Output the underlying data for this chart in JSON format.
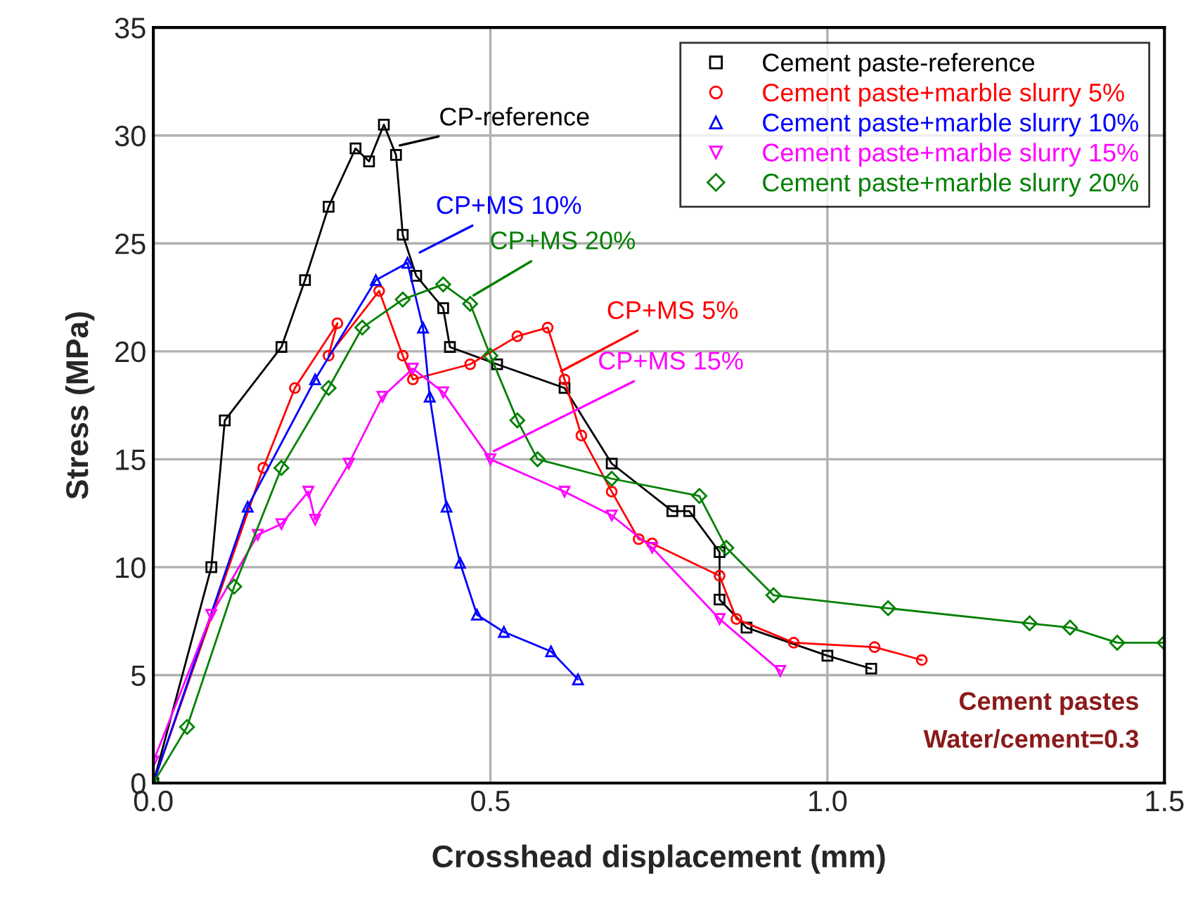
{
  "chart_data": {
    "type": "line",
    "xlabel": "Crosshead displacement (mm)",
    "ylabel": "Stress (MPa)",
    "xlim": [
      0,
      1.5
    ],
    "xticks": [
      {
        "value": 0,
        "label": "0.0"
      },
      0.5,
      {
        "value": 1,
        "label": "1.0"
      },
      1.5
    ],
    "ylim": [
      0,
      35
    ],
    "yticks": [
      0,
      5,
      10,
      15,
      20,
      25,
      30,
      35
    ],
    "grid": true,
    "legend": "top right",
    "series": [
      {
        "name": "Cement paste-reference",
        "color": "#000000",
        "marker": "square",
        "x": [
          0,
          0.086,
          0.106,
          0.19,
          0.225,
          0.26,
          0.3,
          0.32,
          0.342,
          0.36,
          0.37,
          0.39,
          0.43,
          0.44,
          0.51,
          0.61,
          0.68,
          0.77,
          0.795,
          0.84,
          0.84,
          0.88,
          1.0,
          1.065
        ],
        "values": [
          0,
          10.0,
          16.8,
          20.2,
          23.3,
          26.7,
          29.4,
          28.8,
          30.5,
          29.1,
          25.4,
          23.5,
          22.0,
          20.2,
          19.4,
          18.3,
          14.8,
          12.6,
          12.6,
          10.7,
          8.5,
          7.2,
          5.9,
          5.3
        ]
      },
      {
        "name": "Cement paste+marble slurry 5%",
        "color": "#ff0000",
        "marker": "circle",
        "x": [
          0,
          0.163,
          0.21,
          0.273,
          0.26,
          0.335,
          0.37,
          0.385,
          0.47,
          0.54,
          0.585,
          0.61,
          0.635,
          0.68,
          0.72,
          0.74,
          0.84,
          0.865,
          0.95,
          1.07,
          1.14
        ],
        "values": [
          0,
          14.6,
          18.3,
          21.3,
          19.8,
          22.8,
          19.8,
          18.7,
          19.4,
          20.7,
          21.1,
          18.7,
          16.1,
          13.5,
          11.3,
          11.1,
          9.6,
          7.6,
          6.5,
          6.3,
          5.7
        ]
      },
      {
        "name": "Cement paste+marble slurry 10%",
        "color": "#0000ff",
        "marker": "triangle",
        "x": [
          0,
          0.14,
          0.24,
          0.33,
          0.377,
          0.4,
          0.41,
          0.435,
          0.455,
          0.48,
          0.52,
          0.59,
          0.63
        ],
        "values": [
          0,
          12.8,
          18.7,
          23.3,
          24.1,
          21.1,
          17.9,
          12.8,
          10.2,
          7.8,
          7.0,
          6.1,
          4.8
        ]
      },
      {
        "name": "Cement paste+marble slurry 15%",
        "color": "#ff00ff",
        "marker": "triangle_down",
        "x": [
          0,
          0.086,
          0.155,
          0.19,
          0.23,
          0.24,
          0.29,
          0.34,
          0.385,
          0.43,
          0.5,
          0.61,
          0.68,
          0.74,
          0.84,
          0.93
        ],
        "values": [
          1.0,
          7.8,
          11.5,
          12.0,
          13.5,
          12.2,
          14.8,
          17.9,
          19.2,
          18.1,
          15.0,
          13.5,
          12.4,
          10.9,
          7.6,
          5.2
        ]
      },
      {
        "name": "Cement paste+marble slurry 20%",
        "color": "#008000",
        "marker": "diamond",
        "x": [
          0,
          0.05,
          0.12,
          0.19,
          0.26,
          0.31,
          0.37,
          0.43,
          0.47,
          0.5,
          0.54,
          0.57,
          0.68,
          0.81,
          0.85,
          0.92,
          1.09,
          1.3,
          1.36,
          1.43,
          1.5
        ],
        "values": [
          0,
          2.6,
          9.1,
          14.6,
          18.3,
          21.1,
          22.4,
          23.1,
          22.2,
          19.8,
          16.8,
          15.0,
          14.1,
          13.3,
          10.9,
          8.7,
          8.1,
          7.4,
          7.2,
          6.5,
          6.5
        ]
      }
    ],
    "annotations": [
      {
        "text": "CP-reference",
        "x": 0.36,
        "y": 29.5
      },
      {
        "text": "CP+MS 5%",
        "x": 0.6,
        "y": 19.0
      },
      {
        "text": "CP+MS 10%",
        "x": 0.39,
        "y": 24.5
      },
      {
        "text": "CP+MS 15%",
        "x": 0.5,
        "y": 15.3
      },
      {
        "text": "CP+MS 20%",
        "x": 0.47,
        "y": 22.5
      },
      "Cement pastes",
      "Water/cement=0.3"
    ]
  }
}
